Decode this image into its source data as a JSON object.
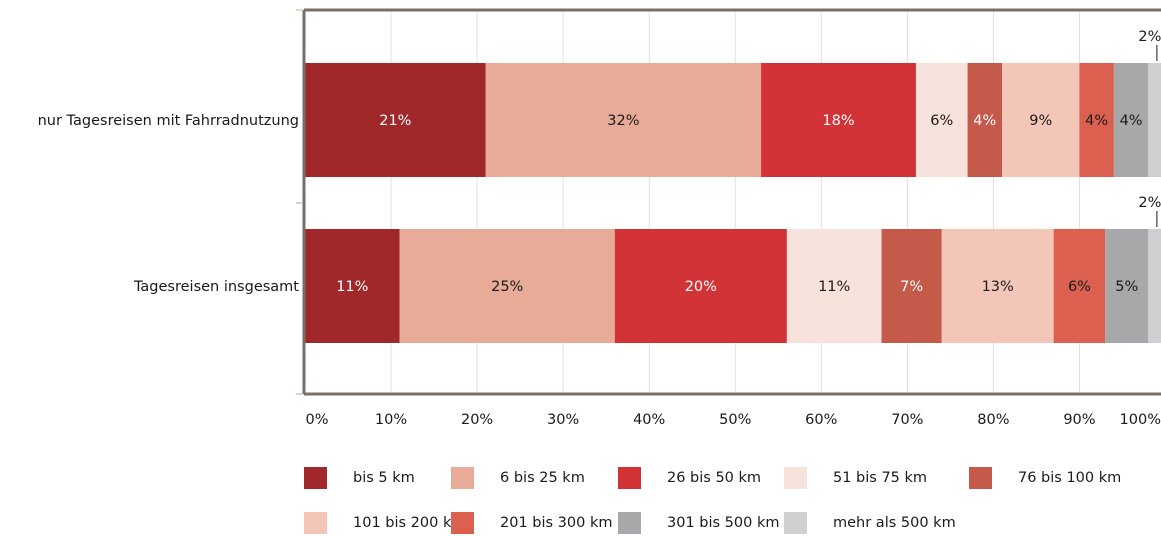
{
  "chart_data": {
    "type": "bar",
    "orientation": "horizontal",
    "stacked": true,
    "categories": [
      "nur Tagesreisen mit Fahrradnutzung",
      "Tagesreisen insgesamt"
    ],
    "series": [
      {
        "name": "bis 5 km",
        "color": "#a0282a",
        "values": [
          21,
          11
        ],
        "labels": [
          "21%",
          "11%"
        ],
        "label_color": "#ffffff"
      },
      {
        "name": "6 bis 25 km",
        "color": "#e7ab98",
        "values": [
          32,
          25
        ],
        "labels": [
          "32%",
          "25%"
        ],
        "label_color": "#1a1a1a"
      },
      {
        "name": "26 bis 50 km",
        "color": "#d23336",
        "values": [
          18,
          20
        ],
        "labels": [
          "18%",
          "20%"
        ],
        "label_color": "#ffffff"
      },
      {
        "name": "51 bis 75 km",
        "color": "#f8e2dc",
        "values": [
          6,
          11
        ],
        "labels": [
          "6%",
          "11%"
        ],
        "label_color": "#1a1a1a"
      },
      {
        "name": "76 bis 100 km",
        "color": "#c55a4b",
        "values": [
          4,
          7
        ],
        "labels": [
          "4%",
          "7%"
        ],
        "label_color": "#ffffff"
      },
      {
        "name": "101 bis 200 km",
        "color": "#f4c6b8",
        "values": [
          9,
          13
        ],
        "labels": [
          "9%",
          "13%"
        ],
        "label_color": "#1a1a1a"
      },
      {
        "name": "201 bis 300 km",
        "color": "#dc6050",
        "values": [
          4,
          6
        ],
        "labels": [
          "4%",
          "6%"
        ],
        "label_color": "#1a1a1a"
      },
      {
        "name": "301 bis 500 km",
        "color": "#a8a8aa",
        "values": [
          4,
          5
        ],
        "labels": [
          "4%",
          "5%"
        ],
        "label_color": "#1a1a1a"
      },
      {
        "name": "mehr als 500 km",
        "color": "#cfcfd1",
        "values": [
          2,
          2
        ],
        "labels": [
          "2%",
          "2%"
        ],
        "label_color": "#1a1a1a",
        "callout": true
      }
    ],
    "xlim": [
      0,
      100
    ],
    "xticks": [
      "0%",
      "10%",
      "20%",
      "30%",
      "40%",
      "50%",
      "60%",
      "70%",
      "80%",
      "90%",
      "100%"
    ],
    "grid": true,
    "legend_position": "bottom",
    "axis_color": "#7a6f66"
  }
}
